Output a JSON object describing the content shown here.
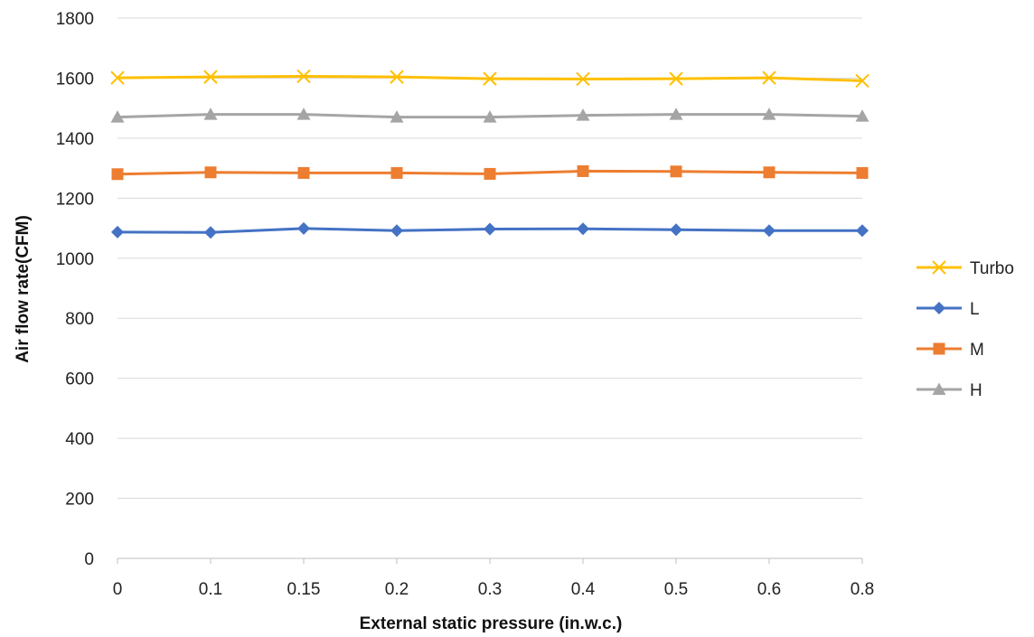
{
  "chart_data": {
    "type": "line",
    "title": "",
    "xlabel": "External static pressure (in.w.c.)",
    "ylabel": "Air flow rate(CFM)",
    "categories": [
      "0",
      "0.1",
      "0.15",
      "0.2",
      "0.3",
      "0.4",
      "0.5",
      "0.6",
      "0.8"
    ],
    "ylim": [
      0,
      1800
    ],
    "yticks": [
      0,
      200,
      400,
      600,
      800,
      1000,
      1200,
      1400,
      1600,
      1800
    ],
    "grid": true,
    "legend_position": "right",
    "series": [
      {
        "name": "Turbo",
        "color": "#FFC000",
        "marker": "x",
        "values": [
          1601,
          1604,
          1606,
          1604,
          1598,
          1597,
          1598,
          1601,
          1591
        ]
      },
      {
        "name": "L",
        "color": "#4472C4",
        "marker": "diamond",
        "values": [
          1087,
          1086,
          1099,
          1092,
          1097,
          1098,
          1095,
          1092,
          1092
        ]
      },
      {
        "name": "M",
        "color": "#ED7D31",
        "marker": "square",
        "values": [
          1280,
          1286,
          1284,
          1284,
          1281,
          1290,
          1289,
          1286,
          1284
        ]
      },
      {
        "name": "H",
        "color": "#A5A5A5",
        "marker": "triangle",
        "values": [
          1470,
          1479,
          1479,
          1470,
          1470,
          1476,
          1479,
          1479,
          1473
        ]
      }
    ]
  }
}
